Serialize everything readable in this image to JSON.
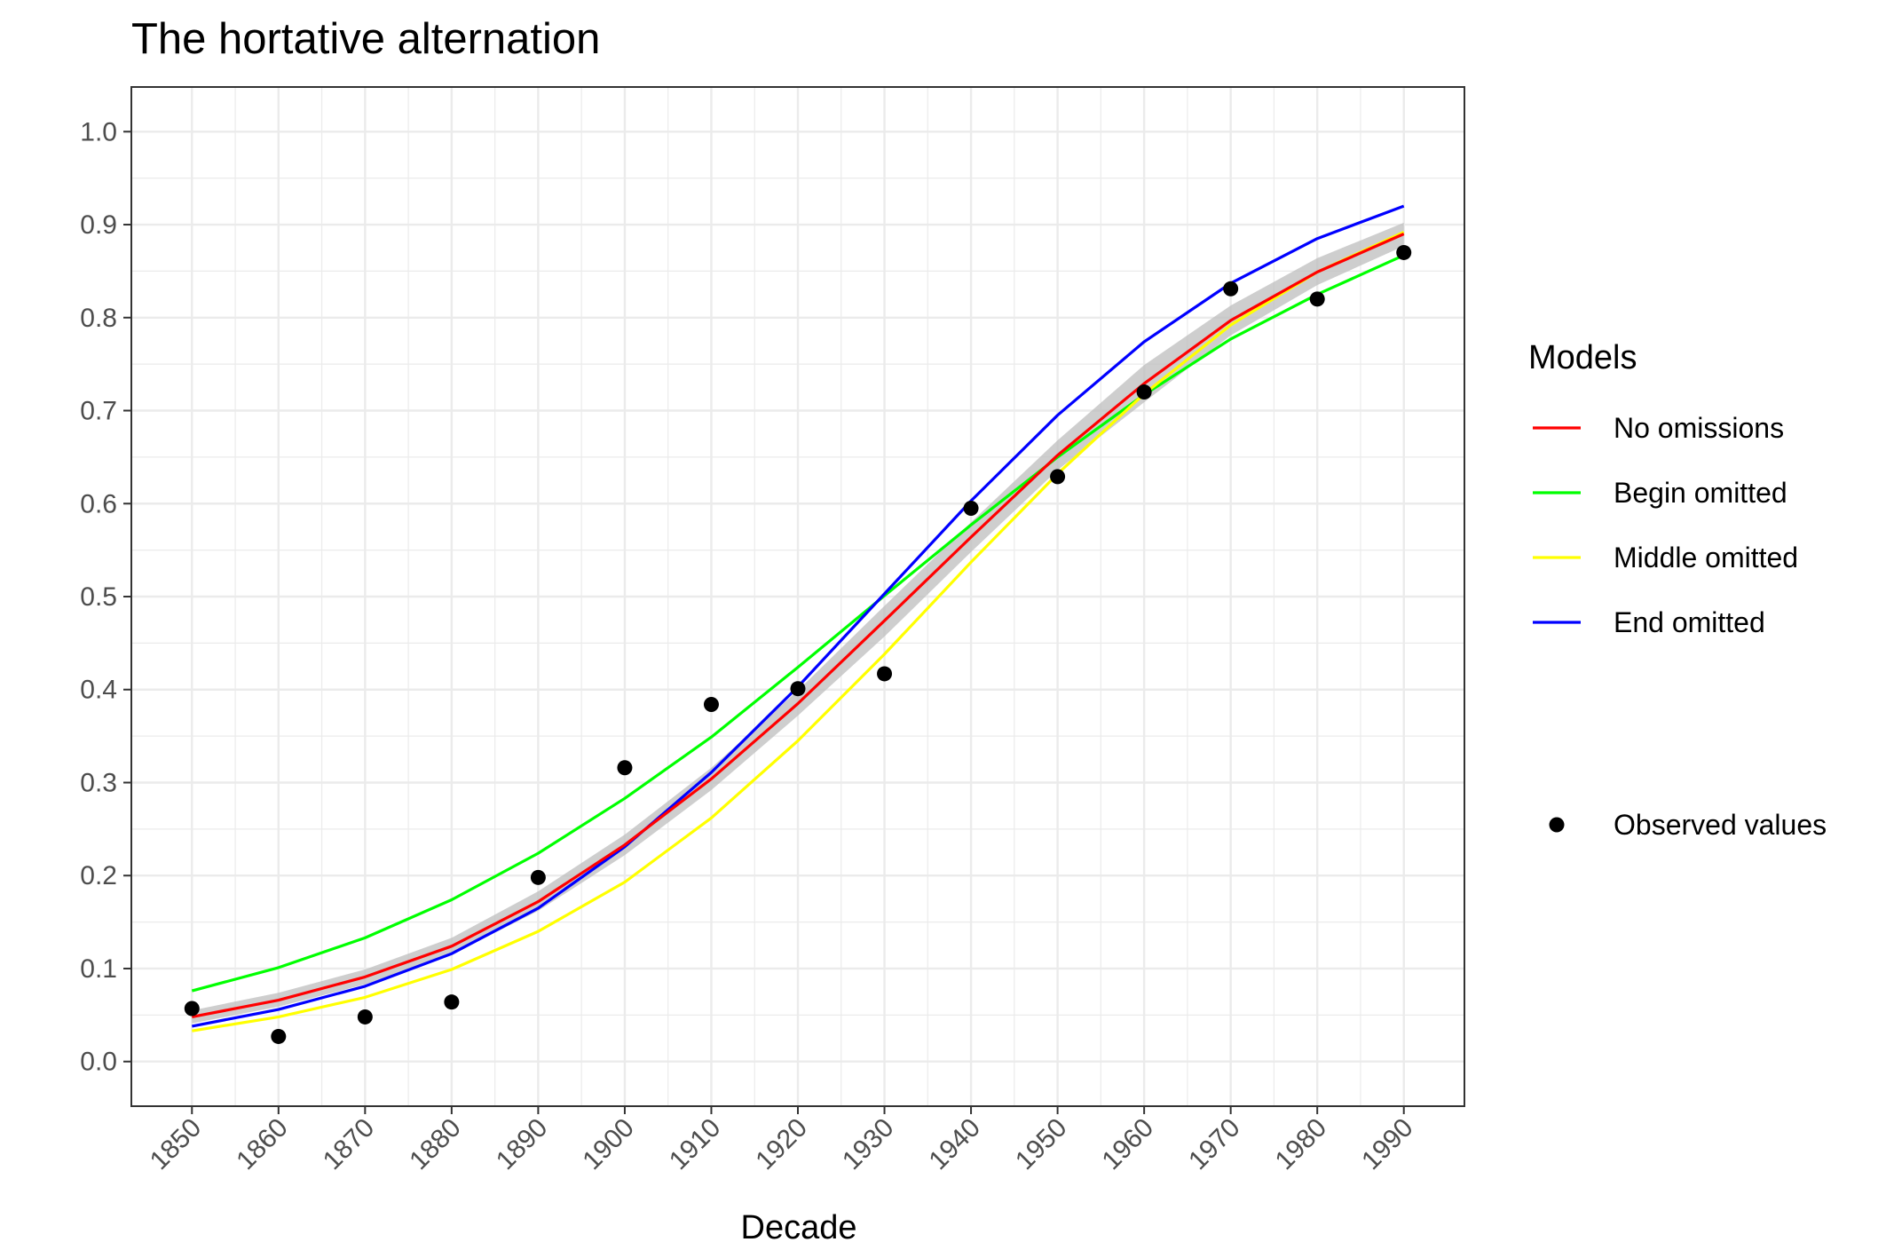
{
  "chart_data": {
    "type": "line",
    "title": "The hortative alternation",
    "xlabel": "Decade",
    "ylabel": "",
    "x": [
      1850,
      1860,
      1870,
      1880,
      1890,
      1900,
      1910,
      1920,
      1930,
      1940,
      1950,
      1960,
      1970,
      1980,
      1990
    ],
    "x_tick_labels": [
      "1850",
      "1860",
      "1870",
      "1880",
      "1890",
      "1900",
      "1910",
      "1920",
      "1930",
      "1940",
      "1950",
      "1960",
      "1970",
      "1980",
      "1990"
    ],
    "y_tick_values": [
      0.0,
      0.1,
      0.2,
      0.3,
      0.4,
      0.5,
      0.6,
      0.7,
      0.8,
      0.9,
      1.0
    ],
    "y_tick_labels": [
      "0.0",
      "0.1",
      "0.2",
      "0.3",
      "0.4",
      "0.5",
      "0.6",
      "0.7",
      "0.8",
      "0.9",
      "1.0"
    ],
    "xlim": [
      1843,
      1997
    ],
    "ylim": [
      -0.048,
      1.048
    ],
    "grid": true,
    "legend": {
      "title": "Models",
      "placement": "right",
      "points_label": "Observed values"
    },
    "confidence_band": {
      "color": "#bdbdbd",
      "lower": [
        0.041,
        0.059,
        0.083,
        0.115,
        0.162,
        0.222,
        0.292,
        0.372,
        0.457,
        0.548,
        0.636,
        0.709,
        0.781,
        0.835,
        0.877
      ],
      "upper": [
        0.055,
        0.074,
        0.099,
        0.133,
        0.183,
        0.244,
        0.316,
        0.399,
        0.49,
        0.58,
        0.668,
        0.749,
        0.813,
        0.864,
        0.902
      ]
    },
    "series": [
      {
        "name": "No omissions",
        "color": "#ff0000",
        "values": [
          0.048,
          0.066,
          0.091,
          0.124,
          0.172,
          0.233,
          0.304,
          0.385,
          0.474,
          0.564,
          0.652,
          0.729,
          0.797,
          0.849,
          0.89
        ]
      },
      {
        "name": "Begin omitted",
        "color": "#00ff00",
        "values": [
          0.076,
          0.101,
          0.133,
          0.174,
          0.224,
          0.283,
          0.349,
          0.424,
          0.501,
          0.577,
          0.65,
          0.717,
          0.777,
          0.825,
          0.867
        ]
      },
      {
        "name": "Middle omitted",
        "color": "#ffff00",
        "values": [
          0.033,
          0.048,
          0.069,
          0.099,
          0.14,
          0.193,
          0.262,
          0.345,
          0.438,
          0.537,
          0.632,
          0.718,
          0.792,
          0.849,
          0.892
        ]
      },
      {
        "name": "End omitted",
        "color": "#0000ff",
        "values": [
          0.038,
          0.056,
          0.081,
          0.116,
          0.165,
          0.231,
          0.311,
          0.403,
          0.503,
          0.603,
          0.695,
          0.774,
          0.837,
          0.885,
          0.92
        ]
      }
    ],
    "observed": {
      "name": "Observed values",
      "color": "#000000",
      "values": [
        0.057,
        0.027,
        0.048,
        0.064,
        0.198,
        0.316,
        0.384,
        0.401,
        0.417,
        0.595,
        0.629,
        0.72,
        0.831,
        0.82,
        0.87
      ]
    }
  }
}
